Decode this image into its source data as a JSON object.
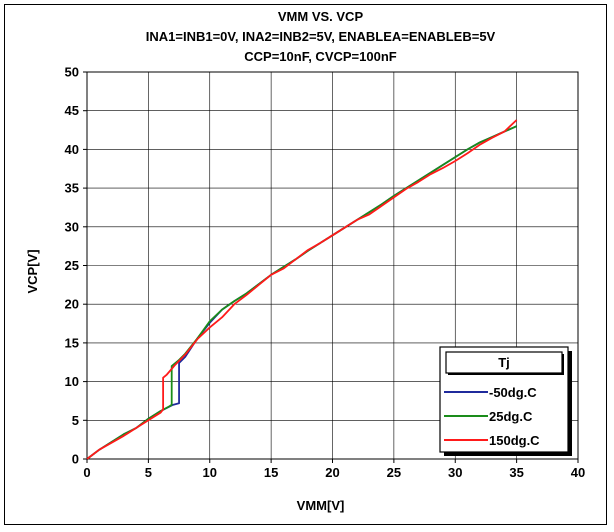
{
  "chart_data": {
    "type": "line",
    "title_lines": [
      "VMM VS. VCP",
      "INA1=INB1=0V, INA2=INB2=5V, ENABLEA=ENABLEB=5V",
      "CCP=10nF, CVCP=100nF"
    ],
    "xlabel": "VMM[V]",
    "ylabel": "VCP[V]",
    "xlim": [
      0,
      40
    ],
    "ylim": [
      0,
      50
    ],
    "x_ticks": [
      0,
      5,
      10,
      15,
      20,
      25,
      30,
      35,
      40
    ],
    "y_ticks": [
      0,
      5,
      10,
      15,
      20,
      25,
      30,
      35,
      40,
      45,
      50
    ],
    "grid": true,
    "legend": {
      "title": "Tj",
      "placement": "bottom-right"
    },
    "series": [
      {
        "name": "-50dg.C",
        "color": "#1f2a9c",
        "x": [
          0,
          1,
          3,
          4,
          5,
          6,
          7,
          7.5,
          7.5,
          8,
          9,
          10,
          11,
          12,
          13,
          14,
          15,
          16,
          17,
          18,
          19,
          20,
          21,
          22,
          23,
          24,
          25,
          26,
          27,
          28,
          29,
          30,
          31,
          32,
          33,
          34,
          35
        ],
        "y": [
          0,
          1.2,
          3.2,
          4.0,
          5.2,
          6.2,
          7.0,
          7.2,
          12.4,
          13.2,
          15.6,
          17.6,
          19.3,
          20.4,
          21.4,
          22.6,
          23.8,
          24.8,
          25.8,
          26.9,
          27.9,
          28.9,
          29.9,
          30.9,
          31.9,
          32.9,
          34.0,
          35.0,
          36.0,
          37.0,
          38.0,
          39.0,
          40.0,
          40.9,
          41.6,
          42.3,
          43.0
        ]
      },
      {
        "name": "25dg.C",
        "color": "#1a8c1a",
        "x": [
          0,
          1,
          3,
          4,
          5,
          6,
          6.7,
          6.9,
          6.9,
          7.5,
          8,
          9,
          10,
          11,
          12,
          13,
          14,
          15,
          16,
          17,
          18,
          19,
          20,
          21,
          22,
          23,
          24,
          25,
          26,
          27,
          28,
          29,
          30,
          31,
          32,
          33,
          34,
          35
        ],
        "y": [
          0,
          1.2,
          3.2,
          4.0,
          5.2,
          6.2,
          6.8,
          7.0,
          12.0,
          12.8,
          13.6,
          15.6,
          17.8,
          19.3,
          20.4,
          21.4,
          22.6,
          23.8,
          24.8,
          25.8,
          26.9,
          27.9,
          28.9,
          29.9,
          30.9,
          31.9,
          32.9,
          34.0,
          35.0,
          36.0,
          37.0,
          38.0,
          39.0,
          40.0,
          40.9,
          41.6,
          42.3,
          43.0
        ]
      },
      {
        "name": "150dg.C",
        "color": "#ff1a1a",
        "x": [
          0,
          1,
          3,
          4,
          5,
          6,
          6.2,
          6.2,
          6.5,
          7.2,
          8,
          9,
          10,
          11,
          12,
          13,
          14,
          15,
          16,
          17,
          18,
          19,
          20,
          21,
          22,
          23,
          24,
          25,
          26,
          27,
          28,
          29,
          30,
          31,
          32,
          33,
          34,
          35
        ],
        "y": [
          0,
          1.2,
          3.0,
          4.0,
          5.0,
          6.0,
          6.4,
          10.5,
          10.9,
          12.2,
          13.5,
          15.5,
          17.0,
          18.3,
          20.0,
          21.2,
          22.5,
          23.8,
          24.6,
          25.8,
          27.0,
          27.9,
          28.9,
          29.9,
          30.9,
          31.6,
          32.7,
          33.8,
          34.9,
          35.8,
          36.8,
          37.6,
          38.5,
          39.5,
          40.6,
          41.5,
          42.3,
          43.8
        ]
      }
    ]
  }
}
